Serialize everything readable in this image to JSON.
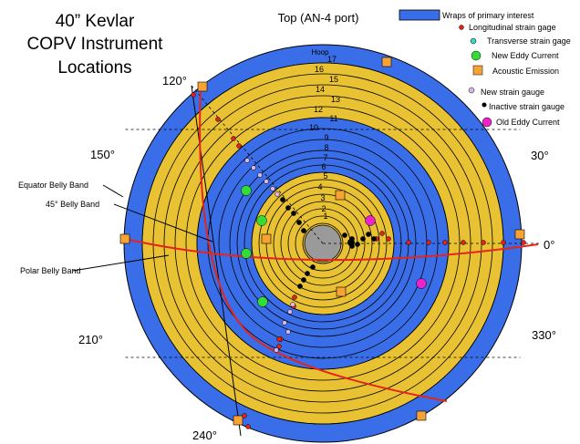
{
  "title": {
    "line1": "40” Kevlar",
    "line2": "COPV Instrument",
    "line3": "Locations"
  },
  "top_label": "Top (AN-4 port)",
  "angle_labels": [
    "120°",
    "150°",
    "30°",
    "0°",
    "210°",
    "330°",
    "240°"
  ],
  "band_labels": {
    "equator": "Equator Belly Band",
    "deg45": "45° Belly Band",
    "polar": "Polar Belly Band"
  },
  "hoop_label": "Hoop",
  "wrap_numbers": [
    "1",
    "2",
    "3",
    "4",
    "5",
    "6",
    "7",
    "8",
    "9",
    "10",
    "11",
    "12",
    "13",
    "14",
    "15",
    "16",
    "17"
  ],
  "legend": [
    {
      "label": "Wraps of primary interest",
      "kind": "rect",
      "color": "#3a6ee8"
    },
    {
      "label": "Longitudinal strain gage",
      "kind": "dot-small",
      "color": "#e2231a"
    },
    {
      "label": "Transverse strain gage",
      "kind": "dot-small",
      "color": "#3fd3c8"
    },
    {
      "label": "New Eddy Current",
      "kind": "dot-large",
      "color": "#33dd33"
    },
    {
      "label": "Acoustic Emission",
      "kind": "square",
      "color": "#f7a234"
    },
    {
      "label": "New strain gauge",
      "kind": "dot-small",
      "color": "#d8b8e8"
    },
    {
      "label": "Inactive strain gauge",
      "kind": "dot-small",
      "color": "#000000"
    },
    {
      "label": "Old Eddy Current",
      "kind": "dot-large",
      "color": "#ee22cc"
    }
  ],
  "colors": {
    "blue": "#3a6ee8",
    "yellow": "#e8c232",
    "gray": "#9a9a9a",
    "red_line": "#e8231a"
  }
}
